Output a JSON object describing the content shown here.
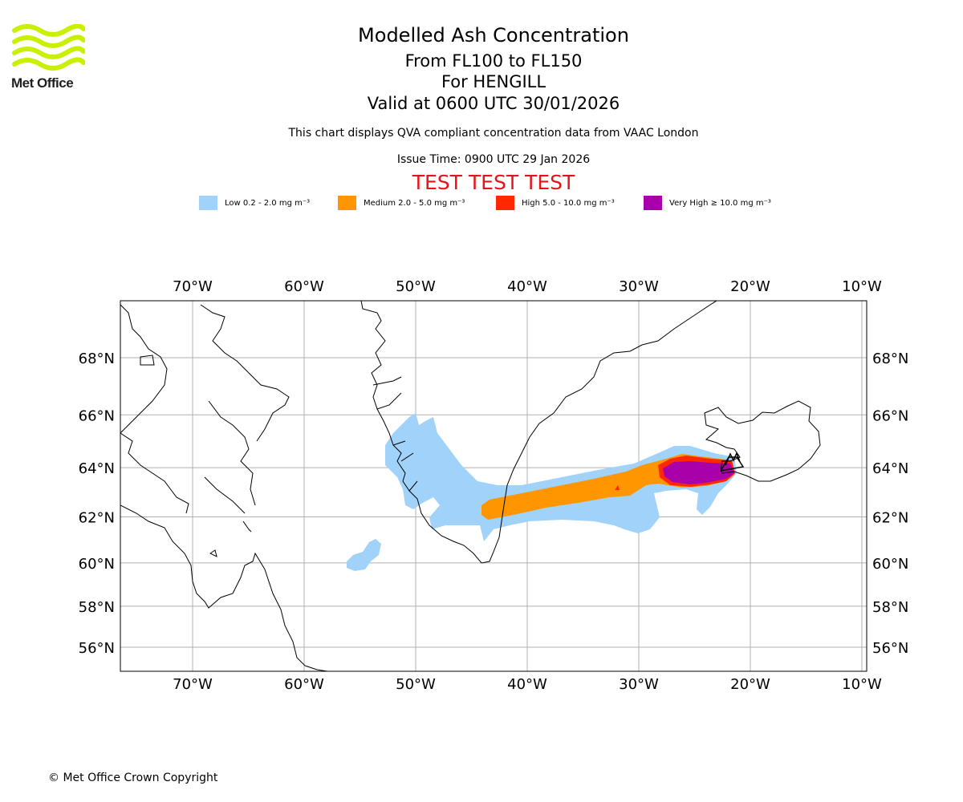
{
  "logo": {
    "text": "Met Office",
    "color": "#c8f000"
  },
  "header": {
    "title": "Modelled Ash Concentration",
    "levels": "From FL100 to FL150",
    "volcano": "For HENGILL",
    "valid": "Valid at 0600 UTC 30/01/2026",
    "disclaimer": "This chart displays QVA compliant concentration data from VAAC London",
    "issue_time": "Issue Time: 0900 UTC 29 Jan 2026",
    "test_banner": "TEST TEST TEST",
    "banner_color": "#e8121a"
  },
  "legend": [
    {
      "label": "Low 0.2 - 2.0 mg m⁻³",
      "color": "#a0d2fa"
    },
    {
      "label": "Medium 2.0 - 5.0 mg m⁻³",
      "color": "#ff9600"
    },
    {
      "label": "High 5.0 - 10.0 mg m⁻³",
      "color": "#ff2800"
    },
    {
      "label": "Very High ≥ 10.0 mg m⁻³",
      "color": "#aa00aa"
    }
  ],
  "map": {
    "lon_ticks": [
      {
        "lon": -70,
        "label": "70°W"
      },
      {
        "lon": -60,
        "label": "60°W"
      },
      {
        "lon": -50,
        "label": "50°W"
      },
      {
        "lon": -40,
        "label": "40°W"
      },
      {
        "lon": -30,
        "label": "30°W"
      },
      {
        "lon": -20,
        "label": "20°W"
      },
      {
        "lon": -10,
        "label": "10°W"
      }
    ],
    "lat_ticks": [
      {
        "lat": 68,
        "label": "68°N"
      },
      {
        "lat": 66,
        "label": "66°N"
      },
      {
        "lat": 64,
        "label": "64°N"
      },
      {
        "lat": 62,
        "label": "62°N"
      },
      {
        "lat": 60,
        "label": "60°N"
      },
      {
        "lat": 58,
        "label": "58°N"
      },
      {
        "lat": 56,
        "label": "56°N"
      }
    ]
  },
  "footer": {
    "copyright": "© Met Office Crown Copyright"
  }
}
